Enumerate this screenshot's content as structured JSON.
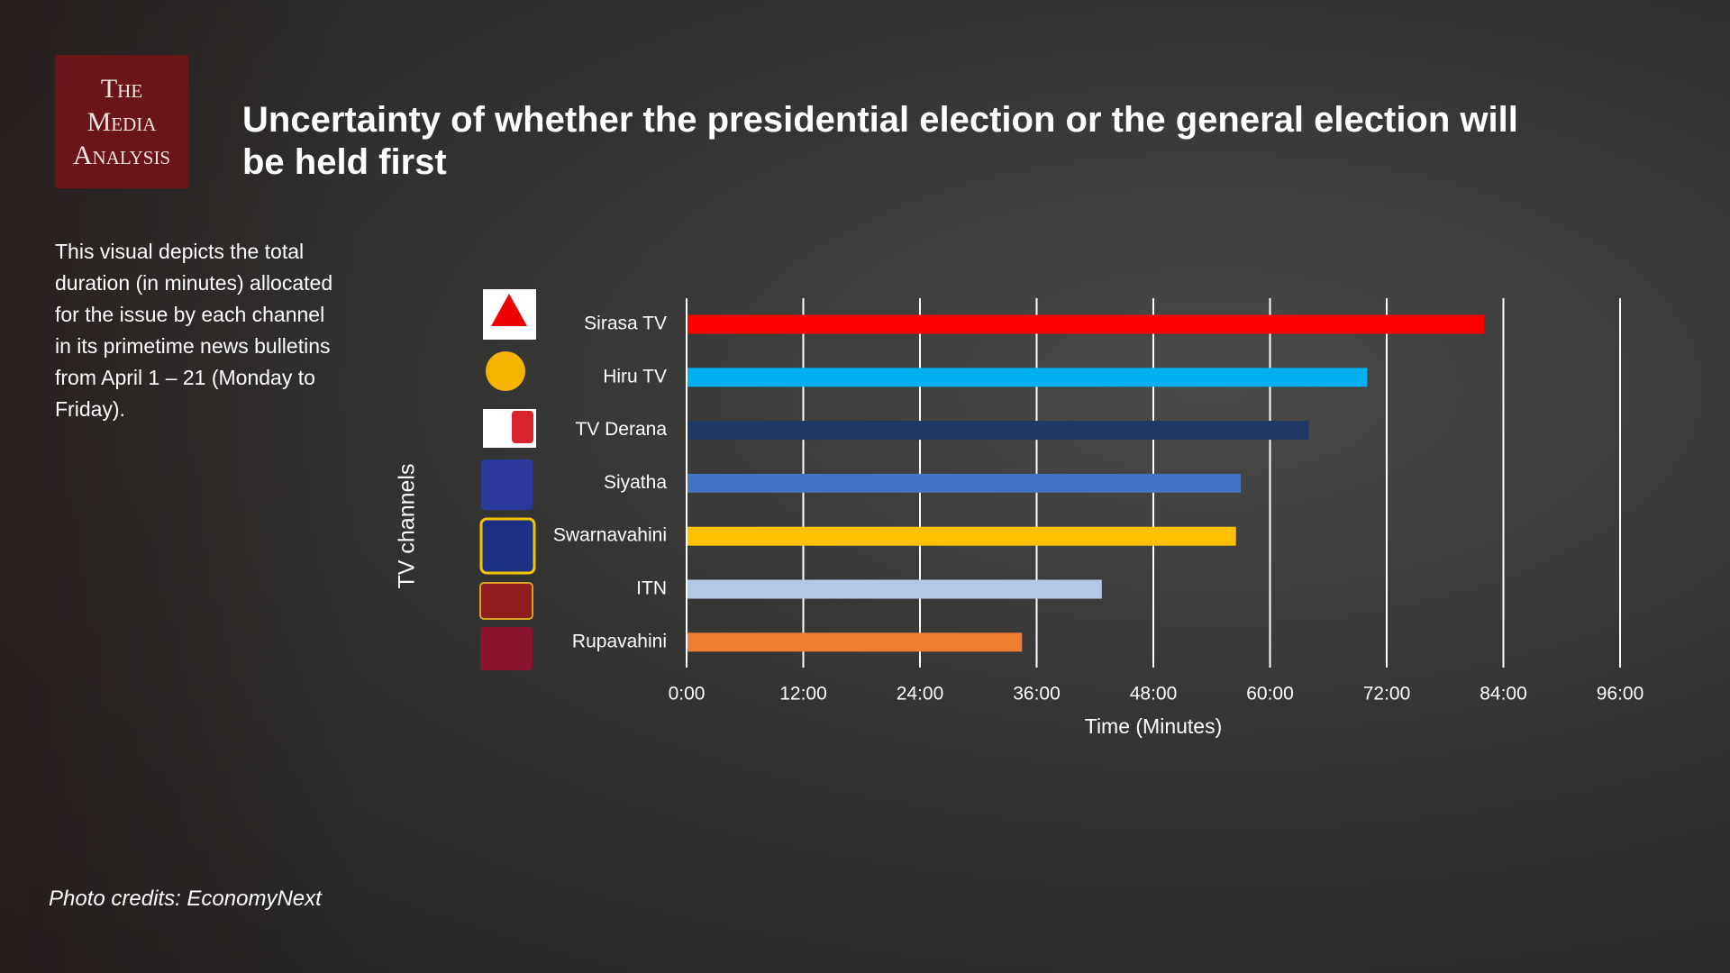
{
  "logo": [
    "The",
    "Media",
    "Analysis"
  ],
  "description": "This visual depicts the total duration (in minutes) allocated for the issue by each channel in its primetime news bulletins from April 1 – 21 (Monday to Friday).",
  "credits": "Photo credits: EconomyNext",
  "chart_data": {
    "type": "bar",
    "orientation": "horizontal",
    "title": "Uncertainty of whether the presidential election or the general election will be held first",
    "x_label": "Time (Minutes)",
    "y_label": "TV channels",
    "categories": [
      "Sirasa TV",
      "Hiru TV",
      "TV Derana",
      "Siyatha",
      "Swarnavahini",
      "ITN",
      "Rupavahini"
    ],
    "values": [
      82,
      70,
      64,
      57,
      56.5,
      42.7,
      34.5
    ],
    "colors": [
      "#ff0000",
      "#00b0f0",
      "#1f3864",
      "#4472c4",
      "#ffc000",
      "#b4c7e7",
      "#ed7d31"
    ],
    "xlim": [
      0,
      96
    ],
    "xticks": [
      {
        "value": 0,
        "label": "0:00"
      },
      {
        "value": 12,
        "label": "12:00"
      },
      {
        "value": 24,
        "label": "24:00"
      },
      {
        "value": 36,
        "label": "36:00"
      },
      {
        "value": 48,
        "label": "48:00"
      },
      {
        "value": 60,
        "label": "60:00"
      },
      {
        "value": 72,
        "label": "72:00"
      },
      {
        "value": 84,
        "label": "84:00"
      },
      {
        "value": 96,
        "label": "96:00"
      }
    ],
    "grid": true
  }
}
